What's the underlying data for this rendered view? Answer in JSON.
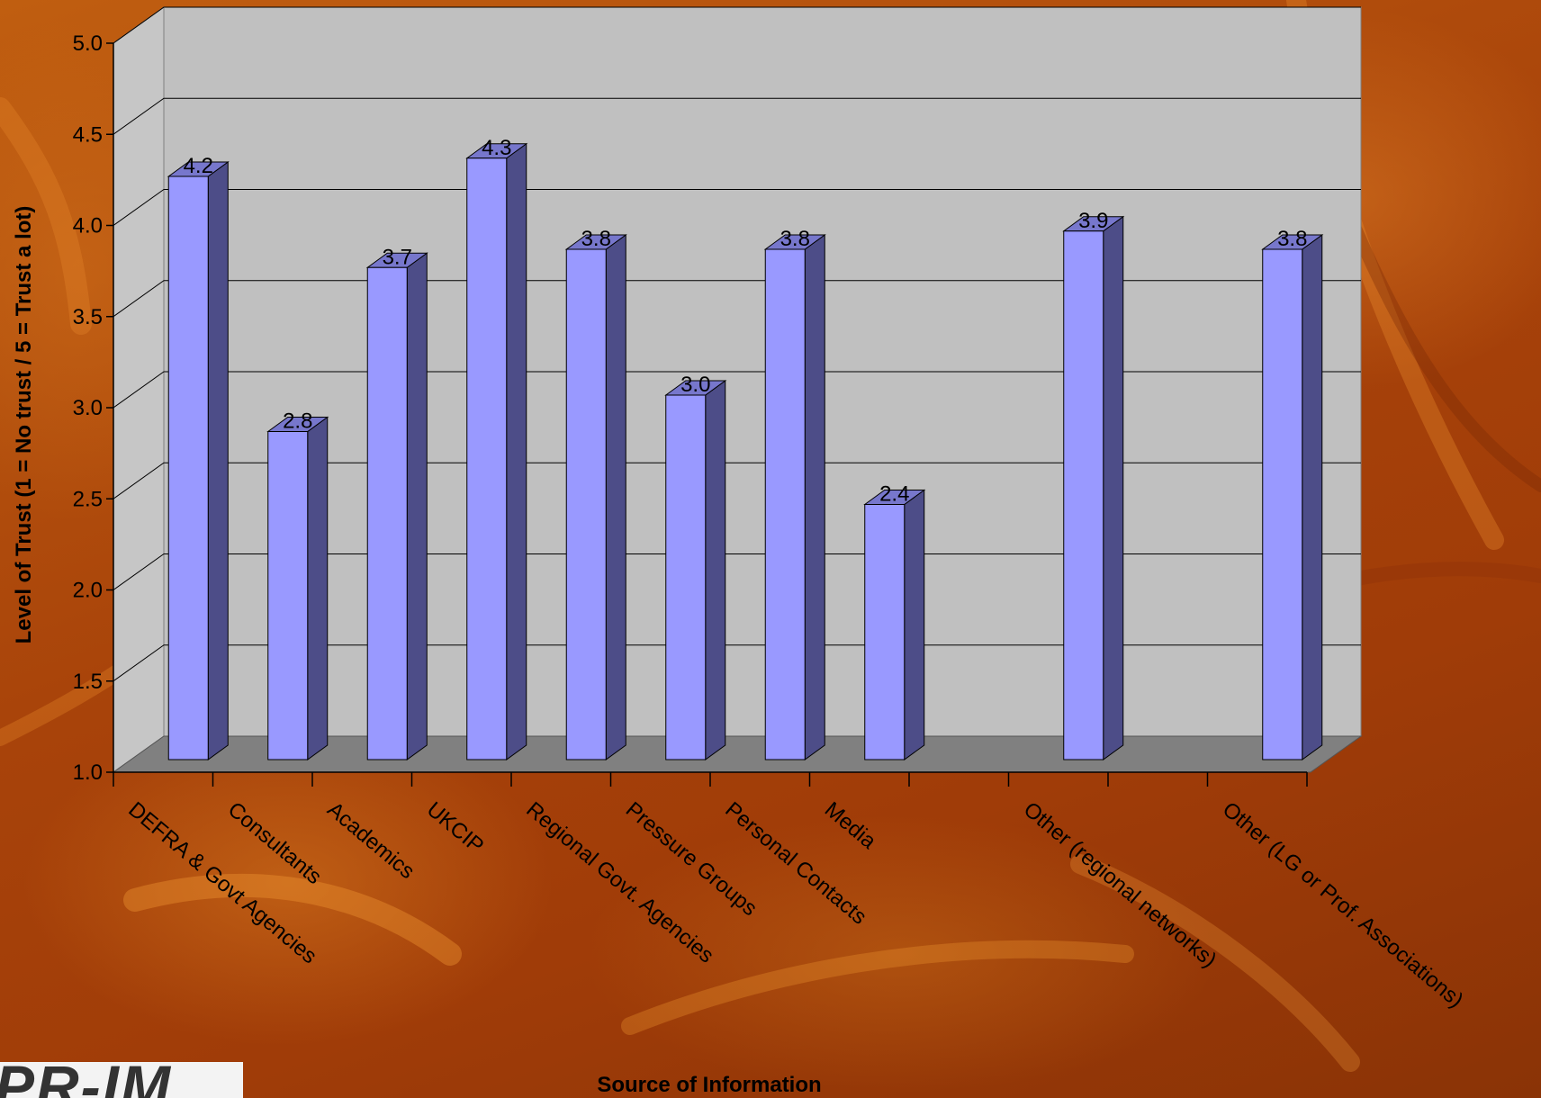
{
  "chart_data": {
    "type": "bar",
    "categories": [
      "DEFRA & Govt Agencies",
      "Consultants",
      "Academics",
      "UKCIP",
      "Regional Govt. Agencies",
      "Pressure Groups",
      "Personal Contacts",
      "Media",
      "",
      "Other (regional networks)",
      "",
      "Other (LG or Prof. Associations)"
    ],
    "values": [
      4.2,
      2.8,
      3.7,
      4.3,
      3.8,
      3.0,
      3.8,
      2.4,
      null,
      3.9,
      null,
      3.8
    ],
    "data_labels": [
      "4.2",
      "2.8",
      "3.7",
      "4.3",
      "3.8",
      "3.0",
      "3.8",
      "2.4",
      "",
      "3.9",
      "",
      "3.8"
    ],
    "xlabel": "Source of Information",
    "ylabel": "Level of Trust (1 = No trust / 5 = Trust a lot)",
    "ylim": [
      1.0,
      5.0
    ],
    "yticks": [
      "1.0",
      "1.5",
      "2.0",
      "2.5",
      "3.0",
      "3.5",
      "4.0",
      "4.5",
      "5.0"
    ],
    "grid": true,
    "style": "3d",
    "colors": {
      "bar_front": "#9999ff",
      "bar_side": "#4d4d88",
      "bar_top": "#7777cc",
      "back_wall": "#c0c0c0",
      "side_wall": "#c8c8c8",
      "floor": "#808080"
    }
  },
  "logo": {
    "text": "PR-IM"
  }
}
